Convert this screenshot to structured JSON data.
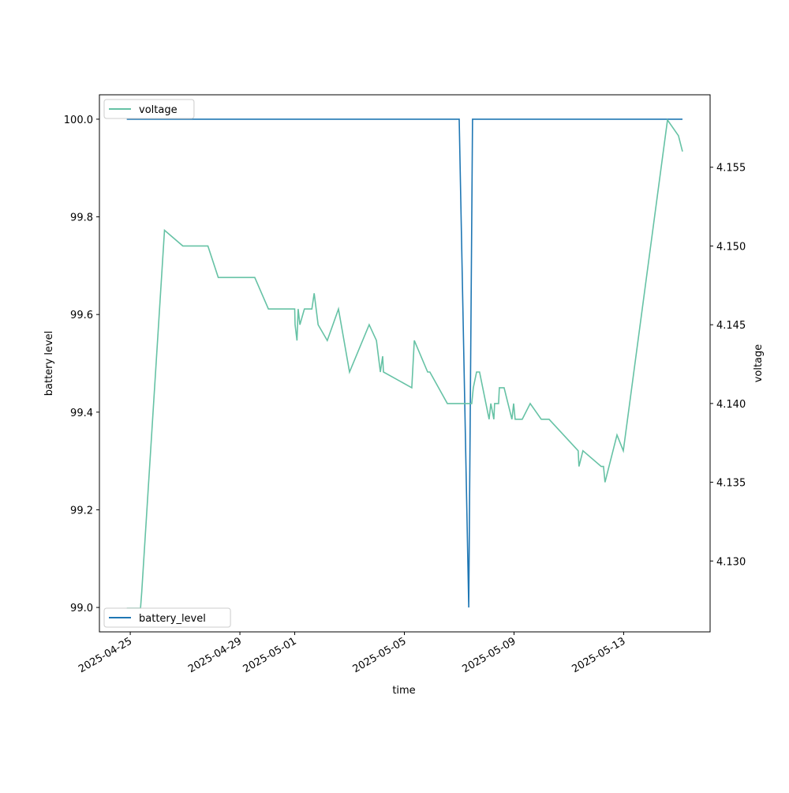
{
  "chart_data": {
    "type": "line",
    "xlabel": "time",
    "ylabel": "battery level",
    "y2label": "voltage",
    "xlim": [
      "2025-04-23T21:00",
      "2025-05-16T03:40"
    ],
    "xticks": [
      "2025-04-25",
      "2025-04-29",
      "2025-05-01",
      "2025-05-05",
      "2025-05-09",
      "2025-05-13"
    ],
    "ylim": [
      98.95,
      100.05
    ],
    "yticks": [
      {
        "value": 99,
        "label": "99.0"
      },
      99.2,
      99.4,
      99.6,
      99.8,
      {
        "value": 100,
        "label": "100.0"
      }
    ],
    "y2lim": [
      4.1255,
      4.1596
    ],
    "y2ticks": [
      {
        "value": 4.13,
        "label": "4.130"
      },
      4.135,
      {
        "value": 4.14,
        "label": "4.140"
      },
      4.145,
      {
        "value": 4.15,
        "label": "4.150"
      },
      4.155
    ],
    "series": [
      {
        "name": "battery_level",
        "color": "#1f77b4",
        "axis": "y",
        "legend": "lower left",
        "x": [
          "2025-04-24T21:00",
          "2025-05-07T00:00",
          "2025-05-07T08:20",
          "2025-05-07T11:40",
          "2025-05-15T03:30"
        ],
        "values": [
          100,
          100,
          99,
          100,
          100
        ]
      },
      {
        "name": "voltage",
        "color": "#66c2a5",
        "axis": "y2",
        "legend": "upper left",
        "x": [
          "2025-04-24T21:00",
          "2025-04-25T09:00",
          "2025-04-25T10:00",
          "2025-04-26T06:00",
          "2025-04-26T22:00",
          "2025-04-27T20:00",
          "2025-04-28T05:00",
          "2025-04-29T13:00",
          "2025-04-30T01:00",
          "2025-05-01T00:00",
          "2025-05-01T00:20",
          "2025-05-01T02:00",
          "2025-05-01T03:00",
          "2025-05-01T04:30",
          "2025-05-01T08:30",
          "2025-05-01T15:00",
          "2025-05-01T17:00",
          "2025-05-01T20:30",
          "2025-05-02T04:30",
          "2025-05-02T14:20",
          "2025-05-03T00:00",
          "2025-05-03T17:10",
          "2025-05-03T23:30",
          "2025-05-04T03:00",
          "2025-05-04T05:00",
          "2025-05-04T05:40",
          "2025-05-05T06:30",
          "2025-05-05T08:40",
          "2025-05-05T20:20",
          "2025-05-05T22:20",
          "2025-05-06T13:40",
          "2025-05-07T11:00",
          "2025-05-07T12:20",
          "2025-05-07T15:10",
          "2025-05-07T17:50",
          "2025-05-08T02:10",
          "2025-05-08T03:40",
          "2025-05-08T06:20",
          "2025-05-08T07:00",
          "2025-05-08T10:30",
          "2025-05-08T11:10",
          "2025-05-08T15:20",
          "2025-05-08T22:10",
          "2025-05-08T23:40",
          "2025-05-09T01:00",
          "2025-05-09T07:10",
          "2025-05-09T14:10",
          "2025-05-09T23:50",
          "2025-05-10T06:40",
          "2025-05-11T08:10",
          "2025-05-11T08:50",
          "2025-05-11T12:20",
          "2025-05-12T04:20",
          "2025-05-12T06:20",
          "2025-05-12T07:40",
          "2025-05-12T18:10",
          "2025-05-12T23:40",
          "2025-05-14T14:20",
          "2025-05-15T00:00",
          "2025-05-15T03:30"
        ],
        "values": [
          4.127,
          4.127,
          4.128,
          4.151,
          4.15,
          4.15,
          4.148,
          4.148,
          4.146,
          4.146,
          4.145,
          4.144,
          4.146,
          4.145,
          4.146,
          4.146,
          4.147,
          4.145,
          4.144,
          4.146,
          4.142,
          4.145,
          4.144,
          4.142,
          4.143,
          4.142,
          4.141,
          4.144,
          4.142,
          4.142,
          4.14,
          4.14,
          4.141,
          4.142,
          4.142,
          4.139,
          4.14,
          4.139,
          4.14,
          4.14,
          4.141,
          4.141,
          4.139,
          4.14,
          4.139,
          4.139,
          4.14,
          4.139,
          4.139,
          4.137,
          4.136,
          4.137,
          4.136,
          4.136,
          4.135,
          4.138,
          4.137,
          4.158,
          4.157,
          4.156
        ]
      }
    ]
  }
}
